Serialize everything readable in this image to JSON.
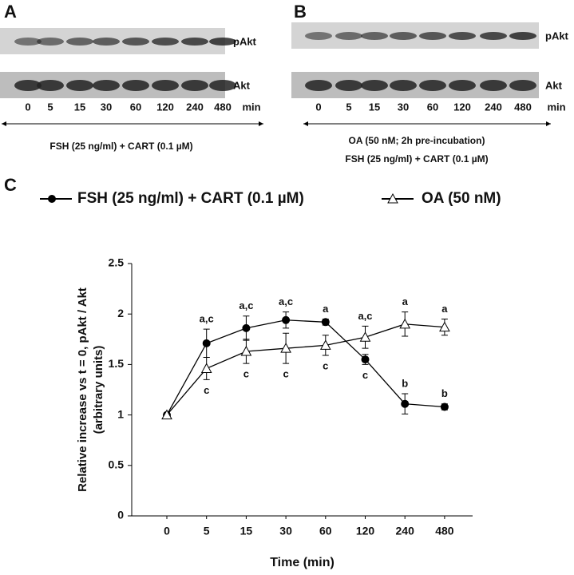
{
  "panels": [
    {
      "letter": "A",
      "blot_labels": [
        "pAkt",
        "Akt"
      ],
      "times": [
        "0",
        "5",
        "15",
        "30",
        "60",
        "120",
        "240",
        "480"
      ],
      "unit": "min",
      "caption": [
        "FSH (25 ng/ml) + CART (0.1 µM)"
      ]
    },
    {
      "letter": "B",
      "blot_labels": [
        "pAkt",
        "Akt"
      ],
      "times": [
        "0",
        "5",
        "15",
        "30",
        "60",
        "120",
        "240",
        "480"
      ],
      "unit": "min",
      "caption": [
        "OA (50 nM; 2h pre-incubation)",
        "FSH (25 ng/ml) + CART (0.1 µM)"
      ]
    }
  ],
  "chart_data": {
    "type": "line",
    "letter": "C",
    "x_label": "Time (min)",
    "y_label": [
      "Relative increase vs t = 0, pAkt / Akt",
      "(arbitrary units)"
    ],
    "categories": [
      "0",
      "5",
      "15",
      "30",
      "60",
      "120",
      "240",
      "480"
    ],
    "ylim": [
      0,
      2.5
    ],
    "yticks": [
      0,
      0.5,
      1,
      1.5,
      2,
      2.5
    ],
    "series": [
      {
        "name": "FSH (25 ng/ml) + CART (0.1 µM)",
        "color": "#000000",
        "marker": "circle",
        "values": [
          1,
          1.71,
          1.86,
          1.94,
          1.92,
          1.55,
          1.11,
          1.08
        ],
        "errors": [
          0.02,
          0.14,
          0.12,
          0.08,
          0.03,
          0.05,
          0.1,
          0.03
        ],
        "labels": [
          null,
          "a,c",
          "a,c",
          "a,c",
          "a",
          "c",
          "b",
          "b"
        ]
      },
      {
        "name": "OA (50 nM)",
        "color": "#000000",
        "marker": "triangle",
        "values": [
          1,
          1.46,
          1.63,
          1.66,
          1.69,
          1.77,
          1.9,
          1.87
        ],
        "errors": [
          0.02,
          0.11,
          0.12,
          0.15,
          0.1,
          0.11,
          0.12,
          0.08
        ],
        "labels": [
          null,
          "c",
          "c",
          "c",
          "c",
          "a,c",
          "a",
          "a"
        ]
      }
    ]
  }
}
